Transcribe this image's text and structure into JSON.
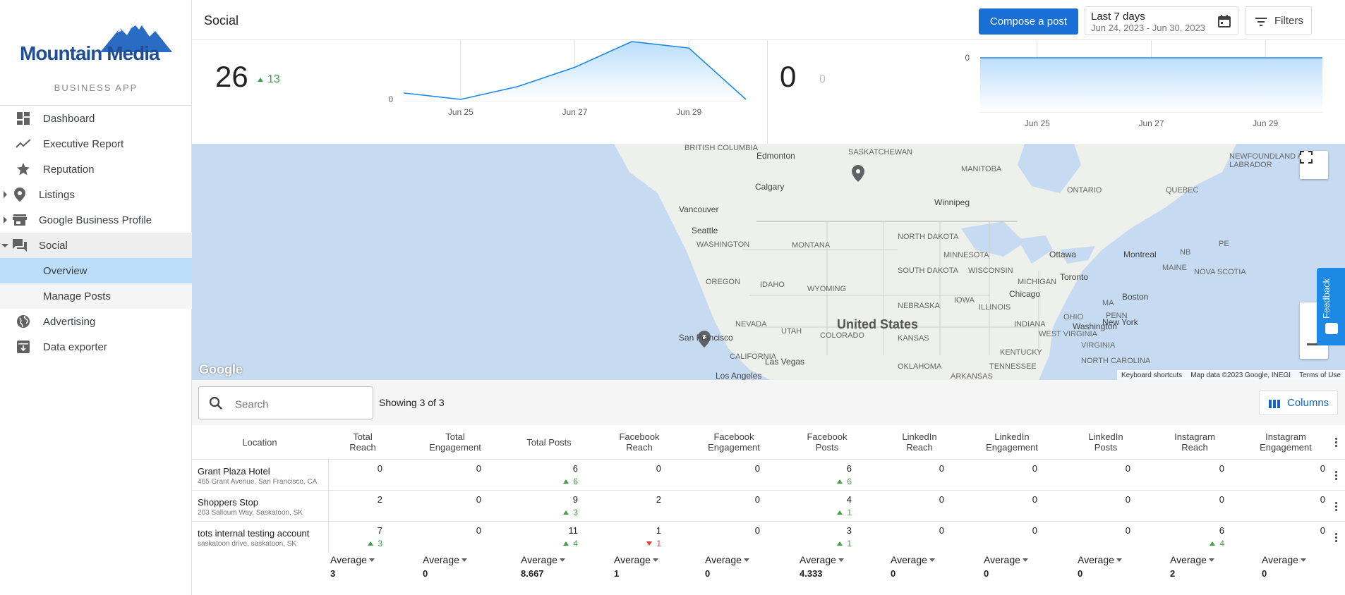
{
  "brand": {
    "name": "Mountain Media",
    "subtitle": "BUSINESS APP",
    "color": "#1f4e96"
  },
  "nav": {
    "items": [
      {
        "label": "Dashboard",
        "icon": "dashboard-icon"
      },
      {
        "label": "Executive Report",
        "icon": "trending-up-icon"
      },
      {
        "label": "Reputation",
        "icon": "star-icon"
      },
      {
        "label": "Listings",
        "icon": "location-pin-icon"
      },
      {
        "label": "Google Business Profile",
        "icon": "storefront-icon"
      },
      {
        "label": "Social",
        "icon": "forum-icon"
      },
      {
        "label": "Overview"
      },
      {
        "label": "Manage Posts"
      },
      {
        "label": "Advertising",
        "icon": "globe-icon"
      },
      {
        "label": "Data exporter",
        "icon": "archive-icon"
      }
    ]
  },
  "header": {
    "title": "Social",
    "compose_label": "Compose a post",
    "date_range_label": "Last 7 days",
    "date_range_value": "Jun 24, 2023 - Jun 30, 2023",
    "filters_label": "Filters",
    "accent": "#1a6fd6"
  },
  "stats": [
    {
      "value": "26",
      "delta": "13"
    },
    {
      "value": "0",
      "delta": "0"
    }
  ],
  "chart_data": [
    {
      "type": "area",
      "x": [
        "Jun 24",
        "Jun 25",
        "Jun 26",
        "Jun 27",
        "Jun 28",
        "Jun 29",
        "Jun 30"
      ],
      "values": [
        1,
        0,
        2,
        5,
        9,
        8,
        0
      ],
      "x_tick_labels": [
        "Jun 25",
        "Jun 27",
        "Jun 29"
      ],
      "y_tick_labels": [
        "0"
      ],
      "color": "#1e88e5"
    },
    {
      "type": "area",
      "x": [
        "Jun 24",
        "Jun 25",
        "Jun 26",
        "Jun 27",
        "Jun 28",
        "Jun 29",
        "Jun 30"
      ],
      "values": [
        0,
        0,
        0,
        0,
        0,
        0,
        0
      ],
      "x_tick_labels": [
        "Jun 25",
        "Jun 27",
        "Jun 29"
      ],
      "y_tick_labels": [
        "0"
      ],
      "color": "#1e88e5"
    }
  ],
  "map": {
    "labels": {
      "country": "United States",
      "cities": [
        "Edmonton",
        "Calgary",
        "Vancouver",
        "Seattle",
        "Winnipeg",
        "Ottawa",
        "Montreal",
        "Toronto",
        "Chicago",
        "Boston",
        "New York",
        "Washington",
        "San Francisco",
        "Las Vegas",
        "Los Angeles"
      ],
      "regions": [
        "BRITISH COLUMBIA",
        "SASKATCHEWAN",
        "MANITOBA",
        "ONTARIO",
        "QUEBEC",
        "NEWFOUNDLAND AND LABRADOR",
        "WASHINGTON",
        "MONTANA",
        "NORTH DAKOTA",
        "MINNESOTA",
        "OREGON",
        "IDAHO",
        "WYOMING",
        "SOUTH DAKOTA",
        "WISCONSIN",
        "MICHIGAN",
        "NEBRASKA",
        "IOWA",
        "NEVADA",
        "UTAH",
        "COLORADO",
        "KANSAS",
        "ILLINOIS",
        "INDIANA",
        "OHIO",
        "PENN",
        "CALIFORNIA",
        "NOVA SCOTIA",
        "MAINE",
        "NB",
        "PE",
        "MA",
        "WEST VIRGINIA",
        "VIRGINIA",
        "KENTUCKY",
        "TENNESSEE",
        "NORTH CAROLINA",
        "OKLAHOMA",
        "ARKANSAS"
      ]
    },
    "brand": "Google",
    "attribution": [
      "Keyboard shortcuts",
      "Map data ©2023 Google, INEGI",
      "Terms of Use"
    ]
  },
  "feedback_label": "Feedback",
  "table": {
    "search_placeholder": "Search",
    "showing": "Showing 3 of 3",
    "columns_label": "Columns",
    "headers": [
      "Location",
      "Total\nReach",
      "Total\nEngagement",
      "Total Posts",
      "Facebook\nReach",
      "Facebook\nEngagement",
      "Facebook\nPosts",
      "LinkedIn\nReach",
      "LinkedIn\nEngagement",
      "LinkedIn\nPosts",
      "Instagram\nReach",
      "Instagram\nEngagement"
    ],
    "rows": [
      {
        "name": "Grant Plaza Hotel",
        "address": "465 Grant Avenue, San Francisco, CA",
        "cells": [
          {
            "v": "0"
          },
          {
            "v": "0"
          },
          {
            "v": "6",
            "d": "6",
            "dir": "up"
          },
          {
            "v": "0"
          },
          {
            "v": "0"
          },
          {
            "v": "6",
            "d": "6",
            "dir": "up"
          },
          {
            "v": "0"
          },
          {
            "v": "0"
          },
          {
            "v": "0"
          },
          {
            "v": "0"
          },
          {
            "v": "0"
          }
        ]
      },
      {
        "name": "Shoppers Stop",
        "address": "203 Salloum Way, Saskatoon, SK",
        "cells": [
          {
            "v": "2"
          },
          {
            "v": "0"
          },
          {
            "v": "9",
            "d": "3",
            "dir": "up"
          },
          {
            "v": "2"
          },
          {
            "v": "0"
          },
          {
            "v": "4",
            "d": "1",
            "dir": "up"
          },
          {
            "v": "0"
          },
          {
            "v": "0"
          },
          {
            "v": "0"
          },
          {
            "v": "0"
          },
          {
            "v": "0"
          }
        ]
      },
      {
        "name": "tots internal testing account",
        "address": "saskatoon drive, saskatoon, SK",
        "cells": [
          {
            "v": "7",
            "d": "3",
            "dir": "up"
          },
          {
            "v": "0"
          },
          {
            "v": "11",
            "d": "4",
            "dir": "up"
          },
          {
            "v": "1",
            "d": "1",
            "dir": "down"
          },
          {
            "v": "0"
          },
          {
            "v": "3",
            "d": "1",
            "dir": "up"
          },
          {
            "v": "0"
          },
          {
            "v": "0"
          },
          {
            "v": "0"
          },
          {
            "v": "6",
            "d": "4",
            "dir": "up"
          },
          {
            "v": "0"
          }
        ]
      }
    ],
    "summary_label": "Average",
    "averages": [
      "3",
      "0",
      "8.667",
      "1",
      "0",
      "4.333",
      "0",
      "0",
      "0",
      "2",
      "0"
    ]
  }
}
